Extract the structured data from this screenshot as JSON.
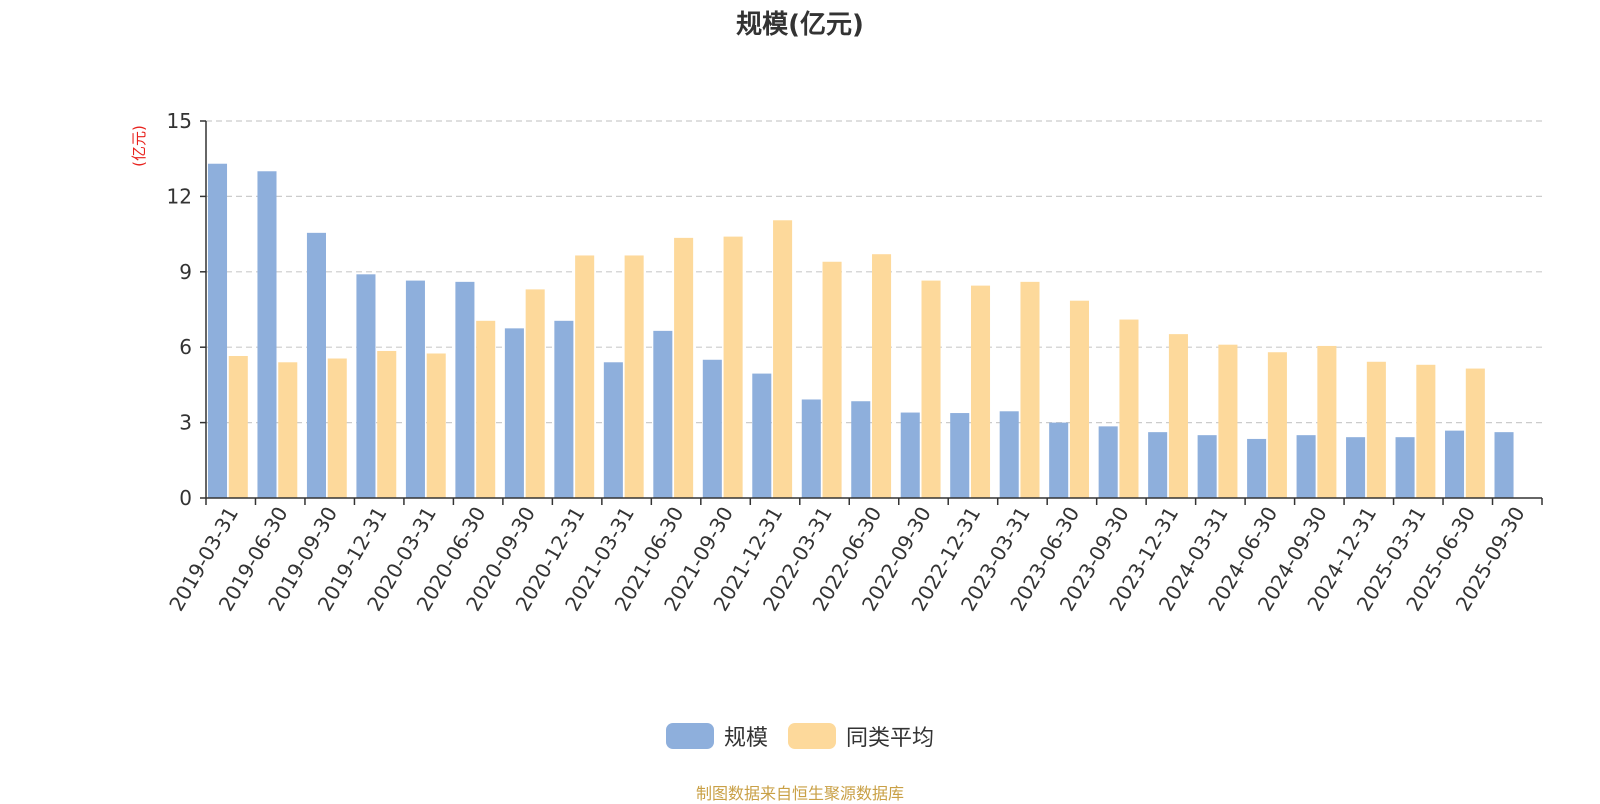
{
  "chart_data": {
    "type": "bar",
    "title": "规模(亿元)",
    "ylabel": "(亿元)",
    "xlabel": "",
    "ylim": [
      0,
      15
    ],
    "yticks": [
      0,
      3,
      6,
      9,
      12,
      15
    ],
    "grid": true,
    "legend_position": "bottom",
    "categories": [
      "2019-03-31",
      "2019-06-30",
      "2019-09-30",
      "2019-12-31",
      "2020-03-31",
      "2020-06-30",
      "2020-09-30",
      "2020-12-31",
      "2021-03-31",
      "2021-06-30",
      "2021-09-30",
      "2021-12-31",
      "2022-03-31",
      "2022-06-30",
      "2022-09-30",
      "2022-12-31",
      "2023-03-31",
      "2023-06-30",
      "2023-09-30",
      "2023-12-31",
      "2024-03-31",
      "2024-06-30",
      "2024-09-30",
      "2024-12-31",
      "2025-03-31",
      "2025-06-30",
      "2025-09-30"
    ],
    "series": [
      {
        "name": "规模",
        "color": "#8eafdc",
        "values": [
          13.3,
          13.0,
          10.55,
          8.9,
          8.65,
          8.6,
          6.75,
          7.05,
          5.4,
          6.65,
          5.5,
          4.95,
          3.92,
          3.85,
          3.4,
          3.38,
          3.45,
          3.0,
          2.85,
          2.62,
          2.5,
          2.35,
          2.5,
          2.42,
          2.42,
          2.68,
          2.62
        ]
      },
      {
        "name": "同类平均",
        "color": "#fdd99b",
        "values": [
          5.65,
          5.4,
          5.55,
          5.85,
          5.75,
          7.05,
          8.3,
          9.65,
          9.65,
          10.35,
          10.4,
          11.05,
          9.4,
          9.7,
          8.65,
          8.45,
          8.6,
          7.85,
          7.1,
          6.52,
          6.1,
          5.8,
          6.05,
          5.42,
          5.3,
          5.15,
          null
        ]
      }
    ]
  },
  "footer": {
    "source": "制图数据来自恒生聚源数据库"
  }
}
